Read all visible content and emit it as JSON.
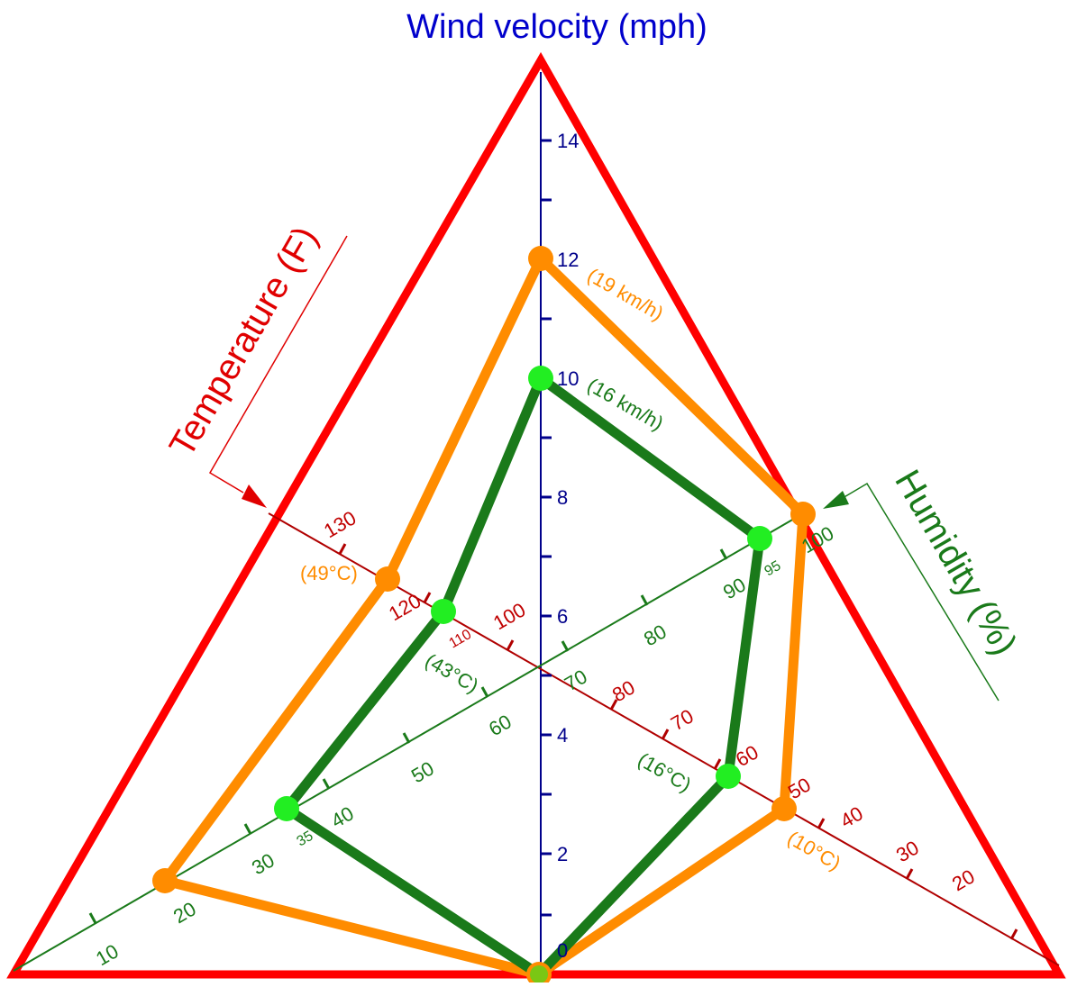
{
  "title": "Wind velocity (mph)",
  "axes": {
    "wind": {
      "label": "Wind velocity (mph)",
      "color": "#00008b",
      "ticks": [
        "0",
        "2",
        "4",
        "6",
        "8",
        "10",
        "12",
        "14"
      ]
    },
    "temperature": {
      "label": "Temperature (F)",
      "color": "#c00000",
      "ticks": [
        "20",
        "30",
        "40",
        "50",
        "60",
        "70",
        "80",
        "100",
        "110",
        "120",
        "130"
      ]
    },
    "humidity": {
      "label": "Humidity (%)",
      "color": "#1a7a1a",
      "ticks": [
        "10",
        "20",
        "30",
        "35",
        "40",
        "50",
        "60",
        "70",
        "80",
        "90",
        "95",
        "100"
      ]
    }
  },
  "frame_color": "#ff0000",
  "series": [
    {
      "color": "#ff8c00",
      "wind_mph": 12,
      "wind_note": "(19 km/h)",
      "temp_high_f": 120,
      "temp_high_note": "(49°C)",
      "humidity_high_pct": 100,
      "temp_low_f": 50,
      "temp_low_note": "(10°C)",
      "humidity_low_pct": 20
    },
    {
      "color": "#1a7a1a",
      "marker_color": "#22ee22",
      "wind_mph": 10,
      "wind_note": "(16 km/h)",
      "temp_high_f": 110,
      "temp_high_note": "(43°C)",
      "humidity_high_pct": 95,
      "temp_low_f": 60,
      "temp_low_note": "(16°C)",
      "humidity_low_pct": 35
    }
  ]
}
